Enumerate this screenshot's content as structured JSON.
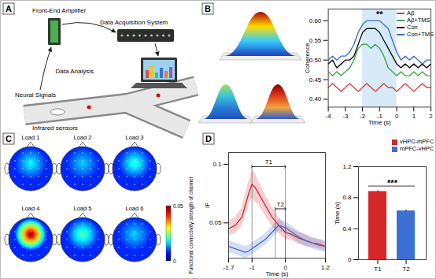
{
  "panel_labels": [
    "A",
    "B",
    "C",
    "D"
  ],
  "diagram": {
    "amplifier": "Front-End Amplifier",
    "acquisition": "Data Acquisition System",
    "signals": "Neural Signals",
    "sensors": "Infrared sensors",
    "analysis": "Data Analysis"
  },
  "topomaps": {
    "type": "heatmap",
    "titles": [
      "Load 1",
      "Load 2",
      "Load 3",
      "Load 4",
      "Load 5",
      "Load 6"
    ],
    "peaks": [
      0.018,
      0.016,
      0.02,
      0.05,
      0.022,
      0.016
    ],
    "background": 0.009,
    "colorbar": {
      "label": "Functional connectivity strength of channel",
      "range": [
        0,
        0.05
      ],
      "ticks": [
        0,
        0.05
      ]
    }
  },
  "chart_data": [
    {
      "type": "line",
      "x_label": "Time (s)",
      "y_label": "Coherence",
      "x": [
        -4,
        -3.75,
        -3.5,
        -3.25,
        -3,
        -2.75,
        -2.5,
        -2.25,
        -2,
        -1.75,
        -1.5,
        -1.25,
        -1,
        -0.75,
        -0.5,
        -0.25,
        0,
        0.25,
        0.5,
        0.75,
        1,
        1.25,
        1.5,
        1.75,
        2
      ],
      "xlim": [
        -4,
        2
      ],
      "xticks": [
        -4,
        -3,
        -2,
        -1,
        0,
        1,
        2
      ],
      "ylim": [
        0.38,
        0.63
      ],
      "yticks": [
        {
          "value": 0.4,
          "label": "0.40"
        },
        0.45,
        {
          "value": 0.5,
          "label": "0.50"
        },
        0.55,
        {
          "value": 0.6,
          "label": "0.60"
        }
      ],
      "highlight": [
        -2,
        0
      ],
      "annotations": [
        {
          "text": "**",
          "x": -1,
          "y": 0.615
        }
      ],
      "legend": "top-right",
      "series": [
        {
          "name": "Aβ",
          "color": "#e0403a",
          "values": [
            0.43,
            0.44,
            0.43,
            0.42,
            0.43,
            0.44,
            0.43,
            0.42,
            0.43,
            0.44,
            0.43,
            0.42,
            0.43,
            0.44,
            0.43,
            0.43,
            0.42,
            0.43,
            0.44,
            0.43,
            0.42,
            0.43,
            0.44,
            0.43,
            0.43
          ]
        },
        {
          "name": "Aβ+TMS",
          "color": "#3aaa4a",
          "values": [
            0.47,
            0.46,
            0.47,
            0.46,
            0.47,
            0.48,
            0.5,
            0.53,
            0.54,
            0.54,
            0.53,
            0.54,
            0.53,
            0.51,
            0.48,
            0.47,
            0.46,
            0.47,
            0.46,
            0.46,
            0.47,
            0.46,
            0.47,
            0.46,
            0.46
          ]
        },
        {
          "name": "Con",
          "color": "#111111",
          "values": [
            0.49,
            0.5,
            0.48,
            0.49,
            0.5,
            0.5,
            0.51,
            0.54,
            0.57,
            0.58,
            0.58,
            0.58,
            0.57,
            0.55,
            0.53,
            0.51,
            0.49,
            0.48,
            0.49,
            0.48,
            0.49,
            0.48,
            0.49,
            0.48,
            0.49
          ]
        },
        {
          "name": "Con+TMS",
          "color": "#3a6fd8",
          "values": [
            0.5,
            0.51,
            0.5,
            0.51,
            0.51,
            0.52,
            0.54,
            0.57,
            0.59,
            0.6,
            0.6,
            0.6,
            0.6,
            0.59,
            0.58,
            0.55,
            0.52,
            0.5,
            0.51,
            0.5,
            0.51,
            0.5,
            0.49,
            0.5,
            0.5
          ]
        }
      ]
    },
    {
      "type": "line",
      "x_label": "Time (s)",
      "y_label": "IF",
      "x": [
        -1.7,
        -1.5,
        -1.3,
        -1.2,
        -1.1,
        -1.0,
        -0.9,
        -0.8,
        -0.6,
        -0.4,
        -0.2,
        0,
        0.2,
        0.4,
        0.6,
        0.8,
        1.0,
        1.2
      ],
      "xlim": [
        -1.7,
        1.2
      ],
      "xticks": [
        -1.7,
        -1,
        0,
        1.2
      ],
      "ylim": [
        0.02,
        0.11
      ],
      "yticks": [
        0.05,
        0.1
      ],
      "annotations": [
        {
          "text": "T1",
          "x1": -1,
          "x2": 0,
          "y": 0.098
        },
        {
          "text": "T2",
          "x1": -0.3,
          "x2": 0,
          "y": 0.062
        }
      ],
      "series": [
        {
          "name": "vHPC-mPFC",
          "color": "#d62728",
          "values": [
            0.045,
            0.048,
            0.055,
            0.065,
            0.075,
            0.083,
            0.08,
            0.075,
            0.065,
            0.055,
            0.048,
            0.042,
            0.04,
            0.037,
            0.035,
            0.033,
            0.032,
            0.03
          ],
          "errors": [
            0.006,
            0.007,
            0.008,
            0.009,
            0.01,
            0.012,
            0.012,
            0.01,
            0.009,
            0.008,
            0.007,
            0.006,
            0.005,
            0.005,
            0.005,
            0.004,
            0.004,
            0.004
          ]
        },
        {
          "name": "mPFC-vHPC",
          "color": "#3b6fd4",
          "values": [
            0.03,
            0.028,
            0.026,
            0.025,
            0.026,
            0.028,
            0.03,
            0.032,
            0.036,
            0.042,
            0.048,
            0.046,
            0.042,
            0.038,
            0.035,
            0.033,
            0.031,
            0.03
          ],
          "errors": [
            0.005,
            0.005,
            0.005,
            0.005,
            0.005,
            0.005,
            0.005,
            0.005,
            0.005,
            0.005,
            0.005,
            0.005,
            0.005,
            0.005,
            0.005,
            0.005,
            0.005,
            0.005
          ]
        }
      ]
    },
    {
      "type": "bar",
      "y_label": "Time (s)",
      "categories": [
        "T1",
        "T2"
      ],
      "ylim": [
        0,
        1.2
      ],
      "yticks": [
        0,
        0.4,
        0.8,
        1.2
      ],
      "legend": "top-right",
      "annotations": [
        {
          "text": "***",
          "x1": "T1",
          "x2": "T2",
          "y": 0.95
        }
      ],
      "series": [
        {
          "name": "vHPC-mPFC",
          "color": "#d62728",
          "values": [
            0.88,
            null
          ],
          "errors": [
            0.01,
            null
          ]
        },
        {
          "name": "mPFC-vHPC",
          "color": "#3b6fd4",
          "values": [
            null,
            0.63
          ],
          "errors": [
            null,
            0.01
          ]
        }
      ]
    }
  ]
}
